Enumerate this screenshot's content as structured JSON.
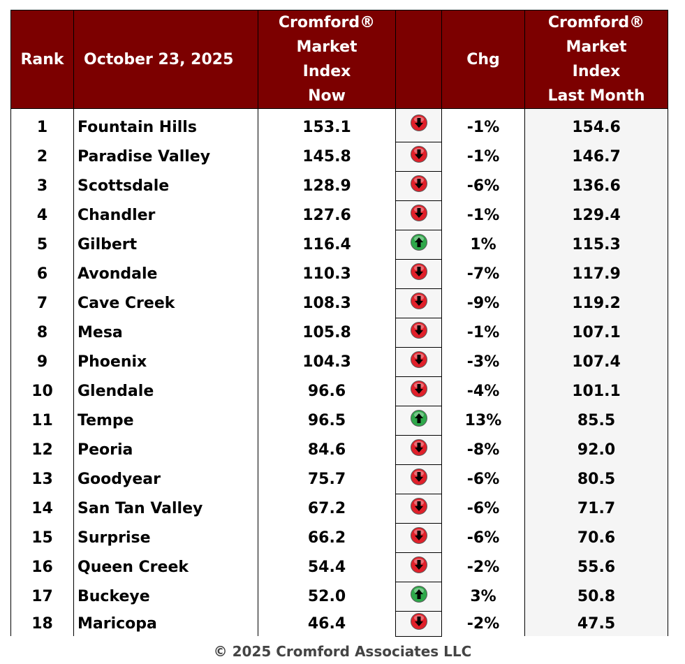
{
  "chart_data": {
    "type": "table",
    "columns": {
      "rank": "Rank",
      "date": "October 23, 2025",
      "now": [
        "Cromford®",
        "Market",
        "Index",
        "Now"
      ],
      "chg": "Chg",
      "last_month": [
        "Cromford®",
        "Market",
        "Index",
        "Last Month"
      ]
    },
    "rows": [
      {
        "rank": "1",
        "city": "Fountain Hills",
        "now": "153.1",
        "direction": "down",
        "chg": "-1%",
        "last": "154.6"
      },
      {
        "rank": "2",
        "city": "Paradise Valley",
        "now": "145.8",
        "direction": "down",
        "chg": "-1%",
        "last": "146.7"
      },
      {
        "rank": "3",
        "city": "Scottsdale",
        "now": "128.9",
        "direction": "down",
        "chg": "-6%",
        "last": "136.6"
      },
      {
        "rank": "4",
        "city": "Chandler",
        "now": "127.6",
        "direction": "down",
        "chg": "-1%",
        "last": "129.4"
      },
      {
        "rank": "5",
        "city": "Gilbert",
        "now": "116.4",
        "direction": "up",
        "chg": "1%",
        "last": "115.3"
      },
      {
        "rank": "6",
        "city": "Avondale",
        "now": "110.3",
        "direction": "down",
        "chg": "-7%",
        "last": "117.9"
      },
      {
        "rank": "7",
        "city": "Cave Creek",
        "now": "108.3",
        "direction": "down",
        "chg": "-9%",
        "last": "119.2"
      },
      {
        "rank": "8",
        "city": "Mesa",
        "now": "105.8",
        "direction": "down",
        "chg": "-1%",
        "last": "107.1"
      },
      {
        "rank": "9",
        "city": "Phoenix",
        "now": "104.3",
        "direction": "down",
        "chg": "-3%",
        "last": "107.4"
      },
      {
        "rank": "10",
        "city": "Glendale",
        "now": "96.6",
        "direction": "down",
        "chg": "-4%",
        "last": "101.1"
      },
      {
        "rank": "11",
        "city": "Tempe",
        "now": "96.5",
        "direction": "up",
        "chg": "13%",
        "last": "85.5"
      },
      {
        "rank": "12",
        "city": "Peoria",
        "now": "84.6",
        "direction": "down",
        "chg": "-8%",
        "last": "92.0"
      },
      {
        "rank": "13",
        "city": "Goodyear",
        "now": "75.7",
        "direction": "down",
        "chg": "-6%",
        "last": "80.5"
      },
      {
        "rank": "14",
        "city": "San Tan Valley",
        "now": "67.2",
        "direction": "down",
        "chg": "-6%",
        "last": "71.7"
      },
      {
        "rank": "15",
        "city": "Surprise",
        "now": "66.2",
        "direction": "down",
        "chg": "-6%",
        "last": "70.6"
      },
      {
        "rank": "16",
        "city": "Queen Creek",
        "now": "54.4",
        "direction": "down",
        "chg": "-2%",
        "last": "55.6"
      },
      {
        "rank": "17",
        "city": "Buckeye",
        "now": "52.0",
        "direction": "up",
        "chg": "3%",
        "last": "50.8"
      },
      {
        "rank": "18",
        "city": "Maricopa",
        "now": "46.4",
        "direction": "down",
        "chg": "-2%",
        "last": "47.5"
      }
    ]
  },
  "colors": {
    "header_bg": "#7c0000",
    "header_text": "#ffffff",
    "down_arrow": "#e0202a",
    "up_arrow": "#2ea84a"
  },
  "icons": {
    "down": "red-down-arrow-icon",
    "up": "green-up-arrow-icon"
  },
  "footer": "© 2025 Cromford Associates LLC"
}
